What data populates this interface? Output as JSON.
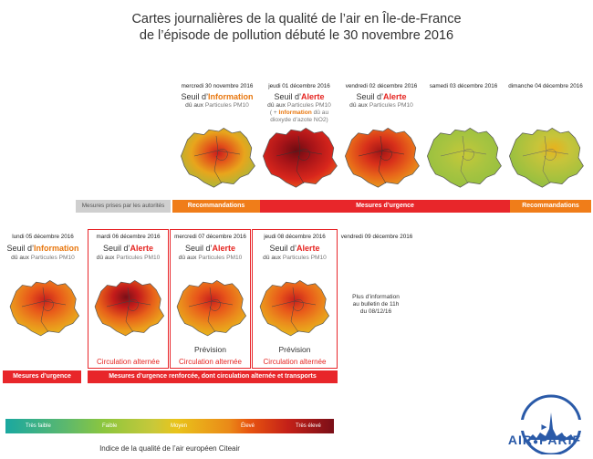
{
  "title": {
    "line1": "Cartes journalières de la qualité de l’air en Île-de-France",
    "line2": "de l’épisode de pollution débuté le 30 novembre 2016"
  },
  "top_row": [
    {
      "date": "mercredi 30 novembre 2016",
      "seuil_prefix": "Seuil d’",
      "seuil_word": "Information",
      "level": "info",
      "cause_prefix": "dû aux ",
      "cause_pm": "Particules PM10",
      "map": "moderate"
    },
    {
      "date": "jeudi 01 décembre 2016",
      "seuil_prefix": "Seuil d’",
      "seuil_word": "Alerte",
      "level": "alerte",
      "cause_prefix": "dû aux ",
      "cause_pm": "Particules PM10",
      "extra_prefix": "( + ",
      "extra_word": "Information",
      "extra_suffix": " dû au",
      "extra_line2": "dioxyde d’azote NO2)",
      "map": "very-high"
    },
    {
      "date": "vendredi 02 décembre 2016",
      "seuil_prefix": "Seuil d’",
      "seuil_word": "Alerte",
      "level": "alerte",
      "cause_prefix": "dû aux ",
      "cause_pm": "Particules PM10",
      "map": "high"
    },
    {
      "date": "samedi 03 décembre 2016",
      "map": "low"
    },
    {
      "date": "dimanche 04 décembre 2016",
      "map": "low-mid"
    }
  ],
  "top_bars": {
    "gray": "Mesures prises par les autorités",
    "left": "Recommandations",
    "middle": "Mesures d’urgence",
    "right": "Recommandations"
  },
  "bottom_row": [
    {
      "date": "lundi 05 décembre 2016",
      "seuil_prefix": "Seuil d’",
      "seuil_word": "Information",
      "level": "info",
      "cause_prefix": "dû aux ",
      "cause_pm": "Particules PM10",
      "map": "moderate-orange"
    },
    {
      "date": "mardi 06 décembre 2016",
      "seuil_prefix": "Seuil d’",
      "seuil_word": "Alerte",
      "level": "alerte",
      "cause_prefix": "dû aux ",
      "cause_pm": "Particules PM10",
      "map": "high-orange",
      "circulation": "Circulation alternée"
    },
    {
      "date": "mercredi 07 décembre 2016",
      "seuil_prefix": "Seuil d’",
      "seuil_word": "Alerte",
      "level": "alerte",
      "cause_prefix": "dû aux ",
      "cause_pm": "Particules PM10",
      "map": "moderate-orange",
      "prevision": "Prévision",
      "circulation": "Circulation alternée"
    },
    {
      "date": "jeudi 08 décembre 2016",
      "seuil_prefix": "Seuil d’",
      "seuil_word": "Alerte",
      "level": "alerte",
      "cause_prefix": "dû aux ",
      "cause_pm": "Particules PM10",
      "map": "moderate-orange",
      "prevision": "Prévision",
      "circulation": "Circulation alternée"
    },
    {
      "date": "vendredi 09 décembre 2016",
      "note_line1": "Plus d’information",
      "note_line2": "au bulletin de 11h",
      "note_line3": "du 08/12/16"
    }
  ],
  "bottom_bars": {
    "left": "Mesures d’urgence",
    "right": "Mesures d’urgence renforcée, dont circulation alternée et transports"
  },
  "scale": {
    "labels": [
      "Très faible",
      "Faible",
      "Moyen",
      "Élevé",
      "Très élevé"
    ],
    "colors": [
      "#1aa8a0",
      "#8cc63e",
      "#e9c41b",
      "#e8560f",
      "#7a0f18"
    ],
    "caption": "Indice de la qualité de l’air européen Citeair"
  },
  "logo": {
    "text_left": "AIR",
    "text_right": "PARIF",
    "color": "#2a5aa8"
  },
  "colors": {
    "info": "#e8770f",
    "alerte": "#e52420",
    "orange_bar": "#f07d19",
    "red_bar": "#e8262a"
  }
}
